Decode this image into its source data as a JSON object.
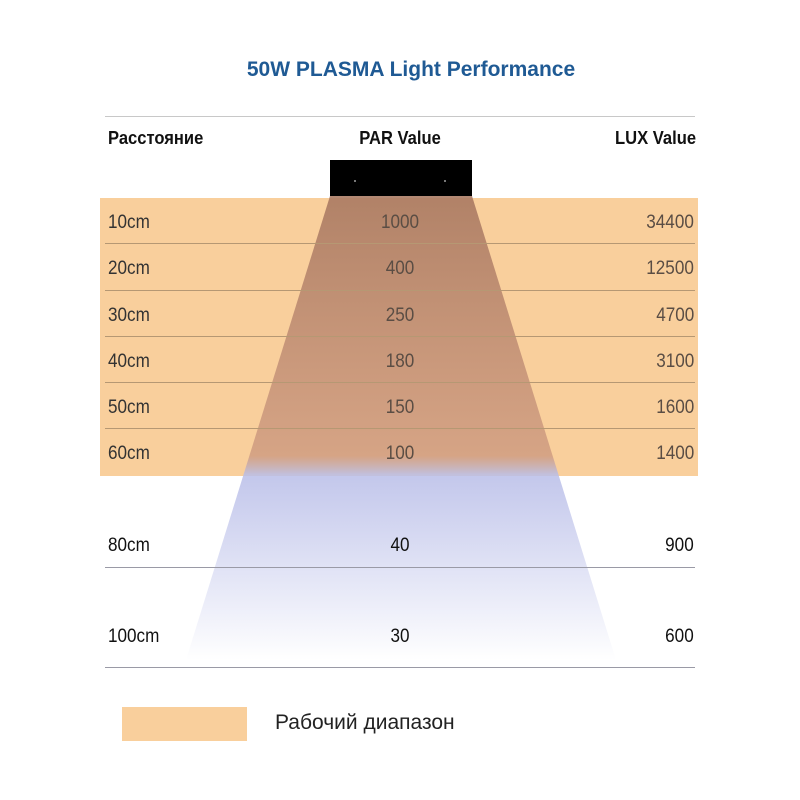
{
  "chart_data": {
    "type": "table",
    "title": "50W PLASMA Light Performance",
    "columns": [
      "Расстояние",
      "PAR Value",
      "LUX Value"
    ],
    "rows": [
      {
        "distance": "10cm",
        "par": 1000,
        "lux": 34400,
        "working_range": true
      },
      {
        "distance": "20cm",
        "par": 400,
        "lux": 12500,
        "working_range": true
      },
      {
        "distance": "30cm",
        "par": 250,
        "lux": 4700,
        "working_range": true
      },
      {
        "distance": "40cm",
        "par": 180,
        "lux": 3100,
        "working_range": true
      },
      {
        "distance": "50cm",
        "par": 150,
        "lux": 1600,
        "working_range": true
      },
      {
        "distance": "60cm",
        "par": 100,
        "lux": 1400,
        "working_range": true
      },
      {
        "distance": "80cm",
        "par": 40,
        "lux": 900,
        "working_range": false
      },
      {
        "distance": "100cm",
        "par": 30,
        "lux": 600,
        "working_range": false
      }
    ],
    "legend": [
      {
        "label": "Рабочий диапазон",
        "color": "#f9cf9c"
      }
    ]
  },
  "colors": {
    "title": "#1f5a94",
    "working_range": "#f9cf9c",
    "beam_warm": "#a77760",
    "beam_cool": "#9ea6dc",
    "lamp": "#000000"
  }
}
